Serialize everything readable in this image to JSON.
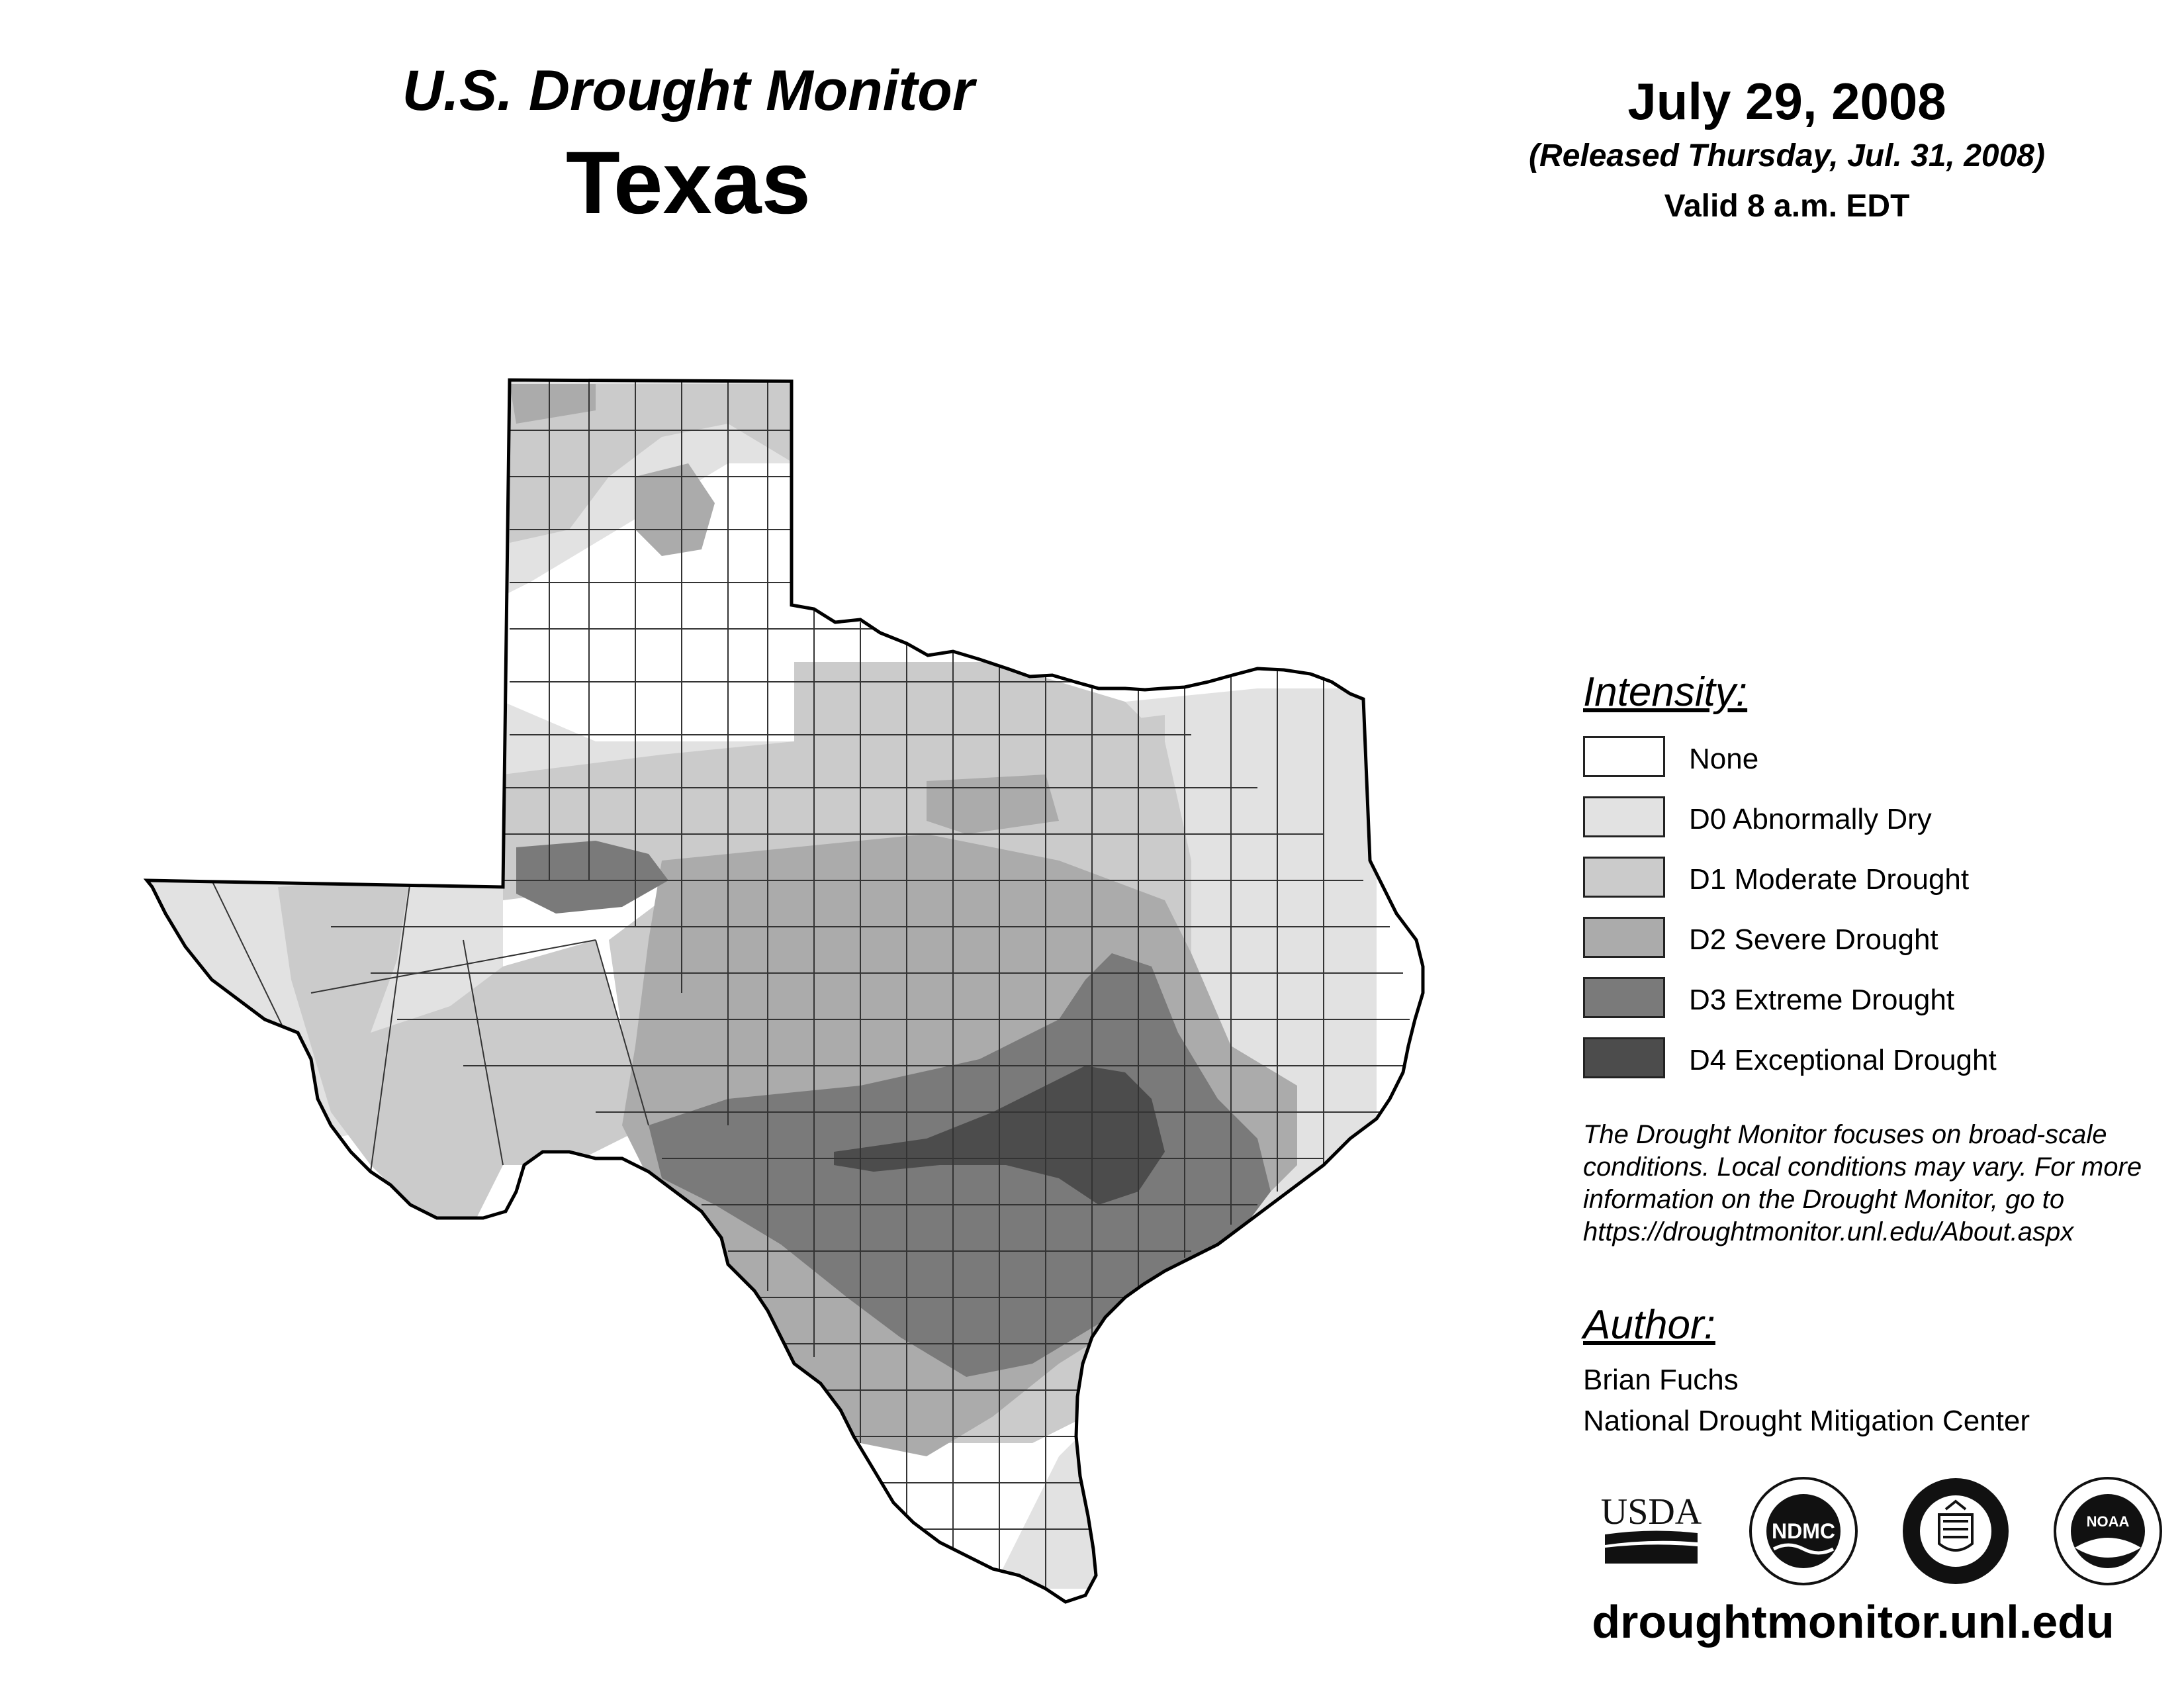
{
  "header": {
    "title": "U.S. Drought Monitor",
    "state": "Texas"
  },
  "date": {
    "main": "July 29, 2008",
    "released": "(Released Thursday, Jul. 31, 2008)",
    "valid": "Valid 8 a.m. EDT"
  },
  "legend": {
    "heading": "Intensity:",
    "items": [
      {
        "label": "None",
        "color": "#ffffff"
      },
      {
        "label": "D0 Abnormally Dry",
        "color": "#e2e2e2"
      },
      {
        "label": "D1 Moderate Drought",
        "color": "#cbcbcb"
      },
      {
        "label": "D2 Severe Drought",
        "color": "#ababab"
      },
      {
        "label": "D3 Extreme Drought",
        "color": "#7a7a7a"
      },
      {
        "label": "D4 Exceptional Drought",
        "color": "#4c4c4c"
      }
    ]
  },
  "disclaimer": "The Drought Monitor focuses on broad-scale conditions. Local conditions may vary. For more information on the Drought Monitor, go to https://droughtmonitor.unl.edu/About.aspx",
  "author": {
    "heading": "Author:",
    "name": "Brian Fuchs",
    "org": "National Drought Mitigation Center"
  },
  "logos": {
    "usda": "USDA",
    "ndmc": "NDMC",
    "noaa": "NOAA"
  },
  "website": "droughtmonitor.unl.edu"
}
